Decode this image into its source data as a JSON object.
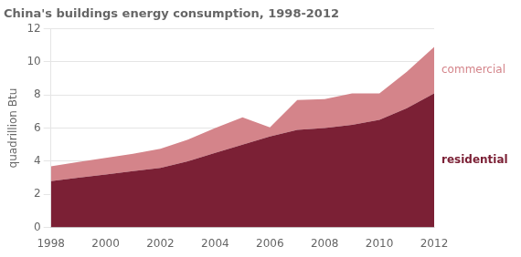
{
  "chart_data": {
    "type": "area",
    "stacked": true,
    "title": "China's buildings energy consumption, 1998-2012",
    "ylabel": "quadrillion Btu",
    "x": [
      1998,
      1999,
      2000,
      2001,
      2002,
      2003,
      2004,
      2005,
      2006,
      2007,
      2008,
      2009,
      2010,
      2011,
      2012
    ],
    "series": [
      {
        "name": "residential",
        "color": "#7b2035",
        "values": [
          2.8,
          3.0,
          3.2,
          3.4,
          3.6,
          4.0,
          4.5,
          5.0,
          5.5,
          5.9,
          6.0,
          6.2,
          6.5,
          7.2,
          8.1
        ]
      },
      {
        "name": "commercial",
        "color": "#d4848a",
        "values": [
          0.9,
          0.95,
          1.0,
          1.05,
          1.15,
          1.3,
          1.5,
          1.65,
          0.55,
          1.8,
          1.75,
          1.9,
          1.6,
          2.2,
          2.8
        ]
      }
    ],
    "xlim": [
      1998,
      2012
    ],
    "xticks": [
      1998,
      2000,
      2002,
      2004,
      2006,
      2008,
      2010,
      2012
    ],
    "ylim": [
      0,
      12
    ],
    "yticks": [
      0,
      2,
      4,
      6,
      8,
      10,
      12
    ],
    "grid": "y"
  }
}
